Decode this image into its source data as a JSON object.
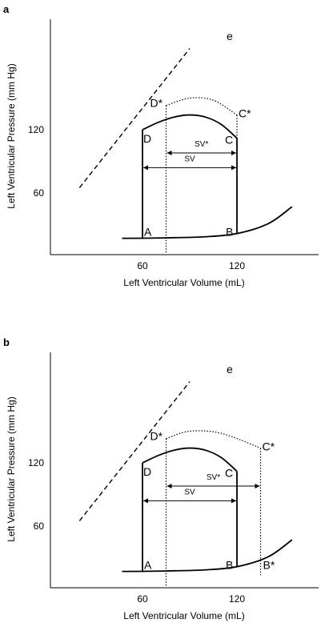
{
  "chart_data": [
    {
      "panel": "a",
      "type": "line",
      "xlabel": "Left Ventricular Volume (mL)",
      "ylabel": "Left Ventricular Pressure (mm Hg)",
      "xticks": [
        "60",
        "120"
      ],
      "yticks": [
        "60",
        "120"
      ],
      "labels": {
        "A": "A",
        "B": "B",
        "C": "C",
        "D": "D",
        "Cs": "C*",
        "Ds": "D*",
        "e": "e",
        "sv": "SV",
        "svs": "SV*"
      },
      "series": [
        {
          "id": "passive",
          "points": [
            [
              47,
              17
            ],
            [
              60,
              17.1
            ],
            [
              80,
              17.6
            ],
            [
              100,
              18.5
            ],
            [
              120,
              21.5
            ],
            [
              140,
              31
            ],
            [
              155,
              47
            ]
          ]
        },
        {
          "id": "loop",
          "points": [
            [
              60,
              120
            ],
            [
              70,
              127
            ],
            [
              80,
              132
            ],
            [
              90,
              134
            ],
            [
              100,
              132
            ],
            [
              110,
              125
            ],
            [
              120,
              112
            ]
          ]
        },
        {
          "id": "loop-star",
          "points": [
            [
              75,
              143
            ],
            [
              90,
              150
            ],
            [
              105,
              148
            ],
            [
              120,
              134
            ]
          ]
        },
        {
          "id": "esp",
          "points": [
            [
              20,
              65
            ],
            [
              30,
              84
            ],
            [
              40,
              103
            ],
            [
              50,
              122
            ],
            [
              60,
              140
            ],
            [
              70,
              159
            ],
            [
              80,
              178
            ],
            [
              90,
              197
            ]
          ]
        }
      ],
      "markers": {
        "A": [
          60,
          18
        ],
        "B": [
          120,
          18
        ],
        "C": [
          120,
          112
        ],
        "D": [
          60,
          120
        ],
        "Cs": [
          120,
          134
        ],
        "Ds": [
          75,
          143
        ]
      },
      "sv": [
        60,
        120
      ],
      "svs": [
        75,
        120
      ],
      "points": {
        "x": 61
      }
    },
    {
      "panel": "b",
      "type": "line",
      "xlabel": "Left Ventricular Volume (mL)",
      "ylabel": "Left Ventricular Pressure (mm Hg)",
      "xticks": [
        "60",
        "120"
      ],
      "yticks": [
        "60",
        "120"
      ],
      "labels": {
        "A": "A",
        "B": "B",
        "C": "C",
        "D": "D",
        "Cs": "C*",
        "Ds": "D*",
        "Bs": "B*",
        "e": "e",
        "sv": "SV",
        "svs": "SV*"
      },
      "series": [
        {
          "id": "passive",
          "points": [
            [
              47,
              17
            ],
            [
              60,
              17.1
            ],
            [
              80,
              17.6
            ],
            [
              100,
              18.5
            ],
            [
              120,
              21.5
            ],
            [
              140,
              31
            ],
            [
              155,
              47
            ]
          ]
        },
        {
          "id": "loop",
          "points": [
            [
              60,
              120
            ],
            [
              70,
              127
            ],
            [
              80,
              132
            ],
            [
              90,
              134
            ],
            [
              100,
              132
            ],
            [
              110,
              125
            ],
            [
              120,
              112
            ]
          ]
        },
        {
          "id": "loop-star",
          "points": [
            [
              75,
              143
            ],
            [
              90,
              150
            ],
            [
              110,
              148
            ],
            [
              135,
              134
            ]
          ]
        },
        {
          "id": "esp",
          "points": [
            [
              20,
              65
            ],
            [
              30,
              84
            ],
            [
              40,
              103
            ],
            [
              50,
              122
            ],
            [
              60,
              140
            ],
            [
              70,
              159
            ],
            [
              80,
              178
            ],
            [
              90,
              197
            ]
          ]
        }
      ],
      "markers": {
        "A": [
          60,
          18
        ],
        "B": [
          120,
          18
        ],
        "C": [
          120,
          112
        ],
        "D": [
          60,
          120
        ],
        "Cs": [
          135,
          134
        ],
        "Ds": [
          75,
          143
        ],
        "Bs": [
          135,
          18
        ]
      },
      "sv": [
        60,
        120
      ],
      "svs": [
        75,
        135
      ]
    }
  ]
}
